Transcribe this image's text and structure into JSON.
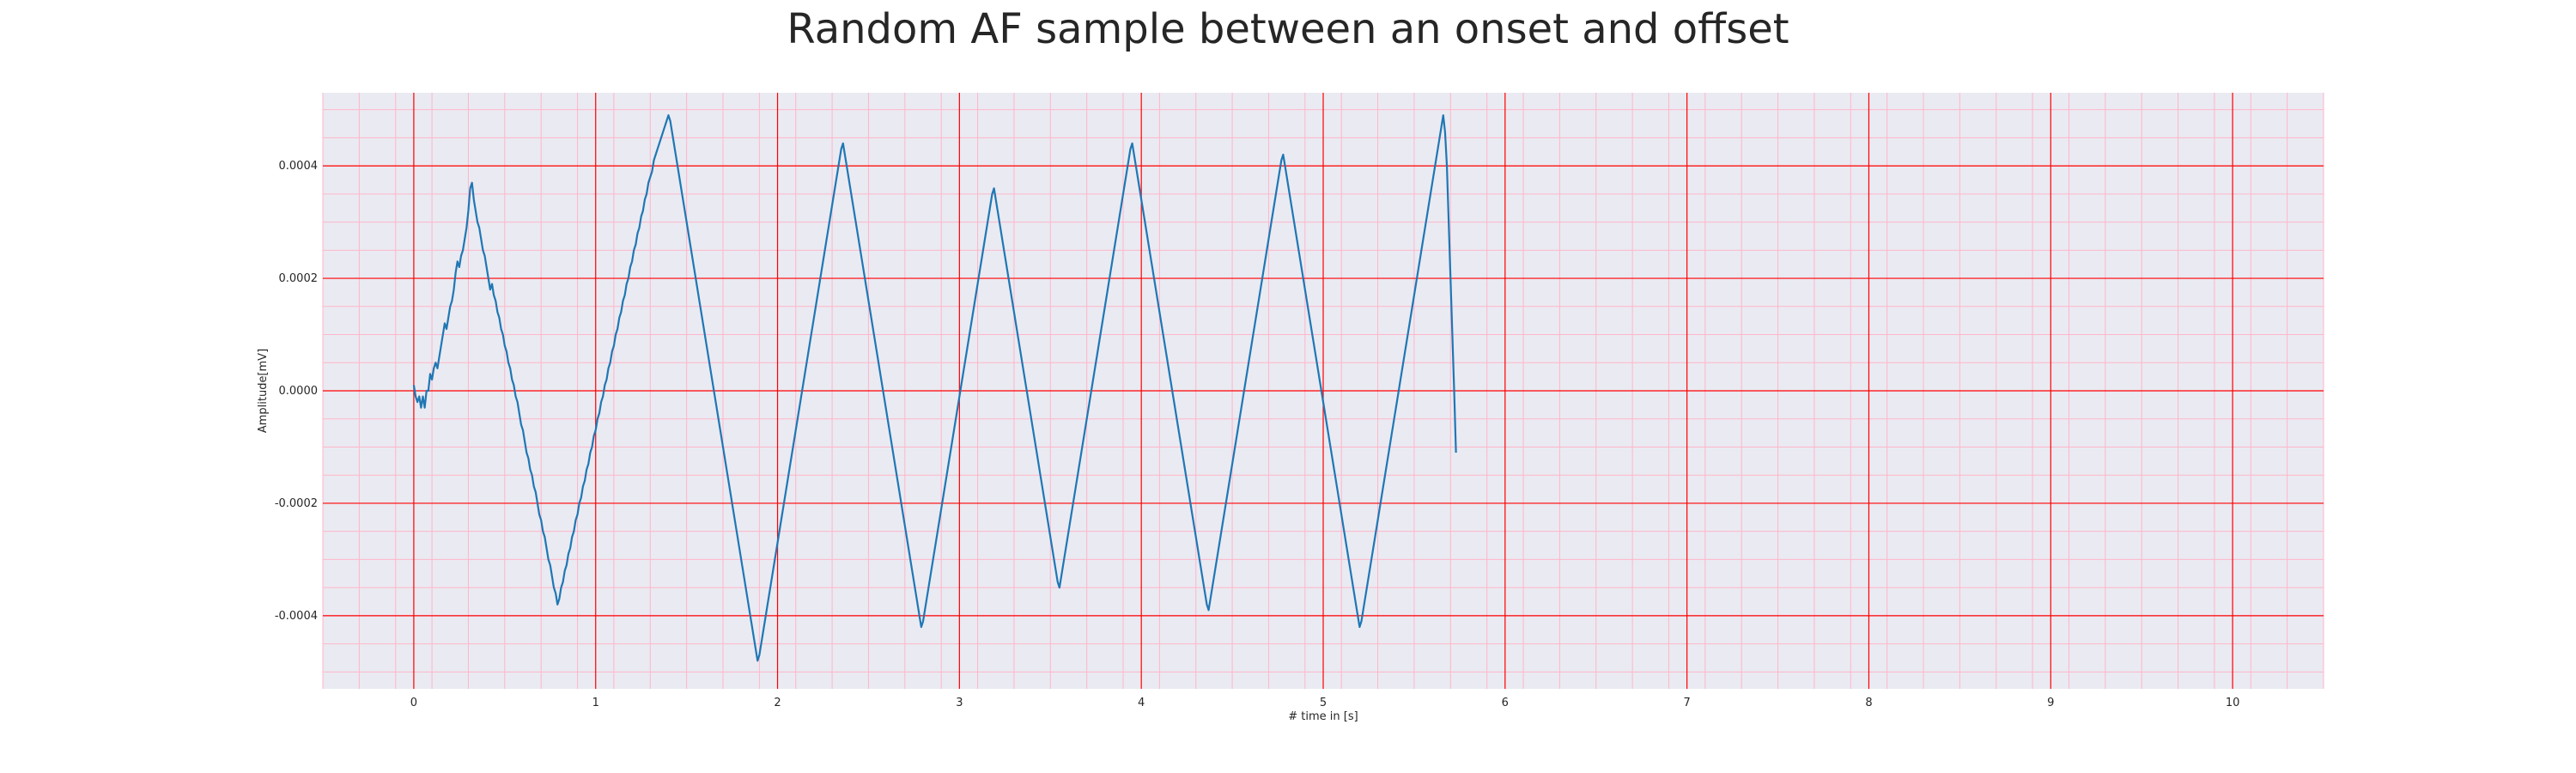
{
  "chart_data": {
    "type": "line",
    "title": "Random AF sample between an onset and offset",
    "xlabel": "# time in [s]",
    "ylabel": "Amplitude[mV]",
    "xlim": [
      -0.5,
      10.5
    ],
    "ylim": [
      -0.00053,
      0.00053
    ],
    "xticks": [
      0,
      1,
      2,
      3,
      4,
      5,
      6,
      7,
      8,
      9,
      10
    ],
    "xtick_labels": [
      "0",
      "1",
      "2",
      "3",
      "4",
      "5",
      "6",
      "7",
      "8",
      "9",
      "10"
    ],
    "yticks": [
      -0.0004,
      -0.0002,
      0.0,
      0.0002,
      0.0004
    ],
    "ytick_labels": [
      "-0.0004",
      "-0.0002",
      "0.0000",
      "0.0002",
      "0.0004"
    ],
    "grid": true,
    "minor_grid": true,
    "colors": {
      "background": "#eaeaf2",
      "major_grid": "#ff0000",
      "minor_grid": "#ffb6c8",
      "line": "#1f77b4"
    },
    "sample_rate_hz": 100,
    "series": [
      {
        "values": [
          1e-05,
          -1e-05,
          -2e-05,
          -1e-05,
          -3e-05,
          -1e-05,
          -3e-05,
          0.0,
          0.0,
          3e-05,
          2e-05,
          4e-05,
          5e-05,
          4e-05,
          6e-05,
          8e-05,
          0.0001,
          0.00012,
          0.00011,
          0.00013,
          0.00015,
          0.00016,
          0.00018,
          0.00021,
          0.00023,
          0.00022,
          0.00024,
          0.00025,
          0.00027,
          0.00029,
          0.00032,
          0.00036,
          0.00037,
          0.00034,
          0.00032,
          0.0003,
          0.00029,
          0.00027,
          0.00025,
          0.00024,
          0.00022,
          0.0002,
          0.00018,
          0.00019,
          0.00017,
          0.00016,
          0.00014,
          0.00013,
          0.00011,
          0.0001,
          8e-05,
          7e-05,
          5e-05,
          4e-05,
          2e-05,
          1e-05,
          -1e-05,
          -2e-05,
          -4e-05,
          -6e-05,
          -7e-05,
          -9e-05,
          -0.00011,
          -0.00012,
          -0.00014,
          -0.00015,
          -0.00017,
          -0.00018,
          -0.0002,
          -0.00022,
          -0.00023,
          -0.00025,
          -0.00026,
          -0.00028,
          -0.0003,
          -0.00031,
          -0.00033,
          -0.00035,
          -0.00036,
          -0.00038,
          -0.00037,
          -0.00035,
          -0.00034,
          -0.00032,
          -0.00031,
          -0.00029,
          -0.00028,
          -0.00026,
          -0.00025,
          -0.00023,
          -0.00022,
          -0.0002,
          -0.00019,
          -0.00017,
          -0.00016,
          -0.00014,
          -0.00013,
          -0.00011,
          -0.0001,
          -8e-05,
          -7e-05,
          -5e-05,
          -4e-05,
          -2e-05,
          -1e-05,
          1e-05,
          2e-05,
          4e-05,
          5e-05,
          7e-05,
          8e-05,
          0.0001,
          0.00011,
          0.00013,
          0.00014,
          0.00016,
          0.00017,
          0.00019,
          0.0002,
          0.00022,
          0.00023,
          0.00025,
          0.00026,
          0.00028,
          0.00029,
          0.00031,
          0.00032,
          0.00034,
          0.00035,
          0.00037,
          0.00038,
          0.00039,
          0.00041,
          0.00042,
          0.00043,
          0.00044,
          0.00045,
          0.00046,
          0.00047,
          0.00048,
          0.00049,
          0.00048,
          0.00046,
          0.00044,
          0.00042,
          0.0004,
          0.00038,
          0.00036,
          0.00034,
          0.00032,
          0.0003,
          0.00028,
          0.00026,
          0.00024,
          0.00022,
          0.0002,
          0.00018,
          0.00016,
          0.00014,
          0.00012,
          0.0001,
          8e-05,
          6e-05,
          4e-05,
          2e-05,
          0.0,
          -2e-05,
          -4e-05,
          -6e-05,
          -8e-05,
          -0.0001,
          -0.00012,
          -0.00014,
          -0.00016,
          -0.00018,
          -0.0002,
          -0.00022,
          -0.00024,
          -0.00026,
          -0.00028,
          -0.0003,
          -0.00032,
          -0.00034,
          -0.00036,
          -0.00038,
          -0.0004,
          -0.00042,
          -0.00044,
          -0.00046,
          -0.00048,
          -0.00047,
          -0.00045,
          -0.00043,
          -0.00041,
          -0.00039,
          -0.00037,
          -0.00035,
          -0.00033,
          -0.00031,
          -0.00029,
          -0.00027,
          -0.00025,
          -0.00023,
          -0.00021,
          -0.00019,
          -0.00017,
          -0.00015,
          -0.00013,
          -0.00011,
          -9e-05,
          -7e-05,
          -5e-05,
          -3e-05,
          -1e-05,
          1e-05,
          3e-05,
          5e-05,
          7e-05,
          9e-05,
          0.00011,
          0.00013,
          0.00015,
          0.00017,
          0.00019,
          0.00021,
          0.00023,
          0.00025,
          0.00027,
          0.00029,
          0.00031,
          0.00033,
          0.00035,
          0.00037,
          0.00039,
          0.00041,
          0.00043,
          0.00044,
          0.00042,
          0.0004,
          0.00038,
          0.00036,
          0.00034,
          0.00032,
          0.0003,
          0.00028,
          0.00026,
          0.00024,
          0.00022,
          0.0002,
          0.00018,
          0.00016,
          0.00014,
          0.00012,
          0.0001,
          8e-05,
          6e-05,
          4e-05,
          2e-05,
          0.0,
          -2e-05,
          -4e-05,
          -6e-05,
          -8e-05,
          -0.0001,
          -0.00012,
          -0.00014,
          -0.00016,
          -0.00018,
          -0.0002,
          -0.00022,
          -0.00024,
          -0.00026,
          -0.00028,
          -0.0003,
          -0.00032,
          -0.00034,
          -0.00036,
          -0.00038,
          -0.0004,
          -0.00042,
          -0.00041,
          -0.00039,
          -0.00037,
          -0.00035,
          -0.00033,
          -0.00031,
          -0.00029,
          -0.00027,
          -0.00025,
          -0.00023,
          -0.00021,
          -0.00019,
          -0.00017,
          -0.00015,
          -0.00013,
          -0.00011,
          -9e-05,
          -7e-05,
          -5e-05,
          -3e-05,
          -1e-05,
          1e-05,
          3e-05,
          5e-05,
          7e-05,
          9e-05,
          0.00011,
          0.00013,
          0.00015,
          0.00017,
          0.00019,
          0.00021,
          0.00023,
          0.00025,
          0.00027,
          0.00029,
          0.00031,
          0.00033,
          0.00035,
          0.00036,
          0.00034,
          0.00032,
          0.0003,
          0.00028,
          0.00026,
          0.00024,
          0.00022,
          0.0002,
          0.00018,
          0.00016,
          0.00014,
          0.00012,
          0.0001,
          8e-05,
          6e-05,
          4e-05,
          2e-05,
          0.0,
          -2e-05,
          -4e-05,
          -6e-05,
          -8e-05,
          -0.0001,
          -0.00012,
          -0.00014,
          -0.00016,
          -0.00018,
          -0.0002,
          -0.00022,
          -0.00024,
          -0.00026,
          -0.00028,
          -0.0003,
          -0.00032,
          -0.00034,
          -0.00035,
          -0.00033,
          -0.00031,
          -0.00029,
          -0.00027,
          -0.00025,
          -0.00023,
          -0.00021,
          -0.00019,
          -0.00017,
          -0.00015,
          -0.00013,
          -0.00011,
          -9e-05,
          -7e-05,
          -5e-05,
          -3e-05,
          -1e-05,
          1e-05,
          3e-05,
          5e-05,
          7e-05,
          9e-05,
          0.00011,
          0.00013,
          0.00015,
          0.00017,
          0.00019,
          0.00021,
          0.00023,
          0.00025,
          0.00027,
          0.00029,
          0.00031,
          0.00033,
          0.00035,
          0.00037,
          0.00039,
          0.00041,
          0.00043,
          0.00044,
          0.00042,
          0.0004,
          0.00038,
          0.00036,
          0.00034,
          0.00032,
          0.0003,
          0.00028,
          0.00026,
          0.00024,
          0.00022,
          0.0002,
          0.00018,
          0.00016,
          0.00014,
          0.00012,
          0.0001,
          8e-05,
          6e-05,
          4e-05,
          2e-05,
          0.0,
          -2e-05,
          -4e-05,
          -6e-05,
          -8e-05,
          -0.0001,
          -0.00012,
          -0.00014,
          -0.00016,
          -0.00018,
          -0.0002,
          -0.00022,
          -0.00024,
          -0.00026,
          -0.00028,
          -0.0003,
          -0.00032,
          -0.00034,
          -0.00036,
          -0.00038,
          -0.00039,
          -0.00037,
          -0.00035,
          -0.00033,
          -0.00031,
          -0.00029,
          -0.00027,
          -0.00025,
          -0.00023,
          -0.00021,
          -0.00019,
          -0.00017,
          -0.00015,
          -0.00013,
          -0.00011,
          -9e-05,
          -7e-05,
          -5e-05,
          -3e-05,
          -1e-05,
          1e-05,
          3e-05,
          5e-05,
          7e-05,
          9e-05,
          0.00011,
          0.00013,
          0.00015,
          0.00017,
          0.00019,
          0.00021,
          0.00023,
          0.00025,
          0.00027,
          0.00029,
          0.00031,
          0.00033,
          0.00035,
          0.00037,
          0.00039,
          0.00041,
          0.00042,
          0.0004,
          0.00038,
          0.00036,
          0.00034,
          0.00032,
          0.0003,
          0.00028,
          0.00026,
          0.00024,
          0.00022,
          0.0002,
          0.00018,
          0.00016,
          0.00014,
          0.00012,
          0.0001,
          8e-05,
          6e-05,
          4e-05,
          2e-05,
          0.0,
          -2e-05,
          -4e-05,
          -6e-05,
          -8e-05,
          -0.0001,
          -0.00012,
          -0.00014,
          -0.00016,
          -0.00018,
          -0.0002,
          -0.00022,
          -0.00024,
          -0.00026,
          -0.00028,
          -0.0003,
          -0.00032,
          -0.00034,
          -0.00036,
          -0.00038,
          -0.0004,
          -0.00042,
          -0.00041,
          -0.00039,
          -0.00037,
          -0.00035,
          -0.00033,
          -0.00031,
          -0.00029,
          -0.00027,
          -0.00025,
          -0.00023,
          -0.00021,
          -0.00019,
          -0.00017,
          -0.00015,
          -0.00013,
          -0.00011,
          -9e-05,
          -7e-05,
          -5e-05,
          -3e-05,
          -1e-05,
          1e-05,
          3e-05,
          5e-05,
          7e-05,
          9e-05,
          0.00011,
          0.00013,
          0.00015,
          0.00017,
          0.00019,
          0.00021,
          0.00023,
          0.00025,
          0.00027,
          0.00029,
          0.00031,
          0.00033,
          0.00035,
          0.00037,
          0.00039,
          0.00041,
          0.00043,
          0.00045,
          0.00047,
          0.00049,
          0.00046,
          0.0004,
          0.0003,
          0.0002,
          0.0001,
          0.0,
          -0.00011
        ]
      }
    ]
  }
}
